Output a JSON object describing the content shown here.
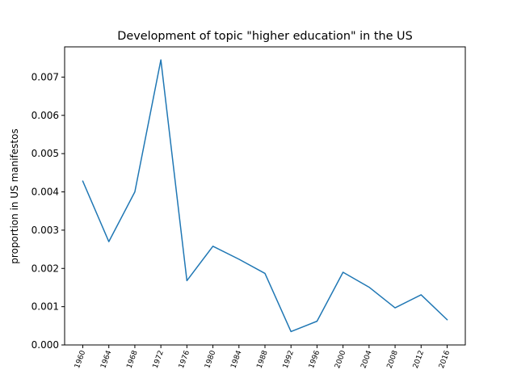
{
  "chart_data": {
    "type": "line",
    "title": "Development of topic \"higher education\" in the US",
    "xlabel": "",
    "ylabel": "proportion in US manifestos",
    "categories": [
      "1960",
      "1964",
      "1968",
      "1972",
      "1976",
      "1980",
      "1984",
      "1988",
      "1992",
      "1996",
      "2000",
      "2004",
      "2008",
      "2012",
      "2016"
    ],
    "series": [
      {
        "values": [
          0.00428,
          0.0027,
          0.004,
          0.00745,
          0.00168,
          0.00258,
          0.00224,
          0.00187,
          0.00035,
          0.00062,
          0.0019,
          0.00151,
          0.00097,
          0.00131,
          0.00066
        ],
        "color": "#1f77b4"
      }
    ],
    "ylim": [
      0,
      0.00779
    ],
    "yticks": [
      "0.000",
      "0.001",
      "0.002",
      "0.003",
      "0.004",
      "0.005",
      "0.006",
      "0.007"
    ],
    "ytick_values": [
      0,
      0.001,
      0.002,
      0.003,
      0.004,
      0.005,
      0.006,
      0.007
    ],
    "grid": false,
    "legend": "none"
  }
}
